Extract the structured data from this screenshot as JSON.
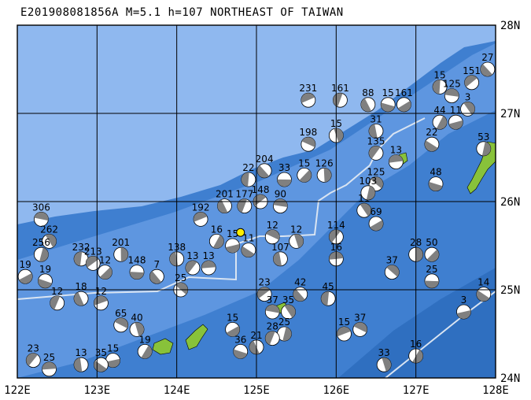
{
  "title": "E201908081856A M=5.1 h=107 NORTHEAST OF TAIWAN",
  "map": {
    "lon_range": [
      122,
      128
    ],
    "lat_range": [
      24,
      28
    ],
    "lon_ticks": [
      "122E",
      "123E",
      "124E",
      "125E",
      "126E",
      "127E",
      "128E"
    ],
    "lat_ticks": [
      "28N",
      "27N",
      "26N",
      "25N",
      "24N"
    ],
    "colors": {
      "deep_sea": "#3f7fd0",
      "mid_sea": "#5e96e0",
      "shelf_sea": "#8fb8ef",
      "land": "#88c23a",
      "grid": "#000000",
      "trench_line": "#d9e4f2",
      "epicenter": "#ffee00"
    },
    "epicenter": {
      "lon": 124.8,
      "lat": 25.65
    }
  },
  "mechanisms": [
    {
      "lon": 128.1,
      "lat": 27.85,
      "depth": "27"
    },
    {
      "lon": 127.9,
      "lat": 27.5,
      "depth": "27"
    },
    {
      "lon": 127.3,
      "lat": 27.3,
      "depth": "15"
    },
    {
      "lon": 127.7,
      "lat": 27.35,
      "depth": "151"
    },
    {
      "lon": 127.45,
      "lat": 27.2,
      "depth": "125"
    },
    {
      "lon": 127.65,
      "lat": 27.05,
      "depth": "3"
    },
    {
      "lon": 127.85,
      "lat": 26.6,
      "depth": "53"
    },
    {
      "lon": 126.85,
      "lat": 27.1,
      "depth": "161"
    },
    {
      "lon": 126.65,
      "lat": 27.1,
      "depth": "15"
    },
    {
      "lon": 126.4,
      "lat": 27.1,
      "depth": "88"
    },
    {
      "lon": 126.05,
      "lat": 27.15,
      "depth": "161"
    },
    {
      "lon": 125.65,
      "lat": 27.15,
      "depth": "231"
    },
    {
      "lon": 125.65,
      "lat": 26.65,
      "depth": "198"
    },
    {
      "lon": 126.0,
      "lat": 26.75,
      "depth": "15"
    },
    {
      "lon": 127.3,
      "lat": 26.9,
      "depth": "44"
    },
    {
      "lon": 127.5,
      "lat": 26.9,
      "depth": "11"
    },
    {
      "lon": 127.2,
      "lat": 26.65,
      "depth": "22"
    },
    {
      "lon": 126.5,
      "lat": 26.8,
      "depth": "31"
    },
    {
      "lon": 126.5,
      "lat": 26.55,
      "depth": "135"
    },
    {
      "lon": 126.75,
      "lat": 26.45,
      "depth": "13"
    },
    {
      "lon": 126.5,
      "lat": 26.2,
      "depth": "125"
    },
    {
      "lon": 125.85,
      "lat": 26.3,
      "depth": "126"
    },
    {
      "lon": 125.6,
      "lat": 26.3,
      "depth": "15"
    },
    {
      "lon": 125.35,
      "lat": 26.25,
      "depth": "33"
    },
    {
      "lon": 125.1,
      "lat": 26.35,
      "depth": "204"
    },
    {
      "lon": 124.9,
      "lat": 26.25,
      "depth": "22"
    },
    {
      "lon": 125.05,
      "lat": 26.0,
      "depth": "148"
    },
    {
      "lon": 125.3,
      "lat": 25.95,
      "depth": "90"
    },
    {
      "lon": 126.35,
      "lat": 25.9,
      "depth": "11"
    },
    {
      "lon": 126.4,
      "lat": 26.1,
      "depth": "103"
    },
    {
      "lon": 126.5,
      "lat": 25.75,
      "depth": "69"
    },
    {
      "lon": 127.25,
      "lat": 26.2,
      "depth": "48"
    },
    {
      "lon": 124.6,
      "lat": 25.95,
      "depth": "201"
    },
    {
      "lon": 124.85,
      "lat": 25.95,
      "depth": "177"
    },
    {
      "lon": 124.3,
      "lat": 25.8,
      "depth": "192"
    },
    {
      "lon": 125.2,
      "lat": 25.6,
      "depth": "12"
    },
    {
      "lon": 125.5,
      "lat": 25.55,
      "depth": "12"
    },
    {
      "lon": 124.5,
      "lat": 25.55,
      "depth": "16"
    },
    {
      "lon": 124.7,
      "lat": 25.5,
      "depth": "15"
    },
    {
      "lon": 124.9,
      "lat": 25.45,
      "depth": "11"
    },
    {
      "lon": 125.3,
      "lat": 25.35,
      "depth": "107"
    },
    {
      "lon": 126.0,
      "lat": 25.6,
      "depth": "114"
    },
    {
      "lon": 126.0,
      "lat": 25.35,
      "depth": "16"
    },
    {
      "lon": 126.7,
      "lat": 25.2,
      "depth": "37"
    },
    {
      "lon": 127.0,
      "lat": 25.4,
      "depth": "28"
    },
    {
      "lon": 127.2,
      "lat": 25.4,
      "depth": "50"
    },
    {
      "lon": 127.2,
      "lat": 25.1,
      "depth": "25"
    },
    {
      "lon": 125.55,
      "lat": 24.95,
      "depth": "42"
    },
    {
      "lon": 125.9,
      "lat": 24.9,
      "depth": "45"
    },
    {
      "lon": 125.1,
      "lat": 24.95,
      "depth": "23"
    },
    {
      "lon": 125.2,
      "lat": 24.75,
      "depth": "37"
    },
    {
      "lon": 125.4,
      "lat": 24.75,
      "depth": "35"
    },
    {
      "lon": 125.35,
      "lat": 24.5,
      "depth": "25"
    },
    {
      "lon": 124.7,
      "lat": 24.55,
      "depth": "15"
    },
    {
      "lon": 124.8,
      "lat": 24.3,
      "depth": "36"
    },
    {
      "lon": 125.0,
      "lat": 24.35,
      "depth": "21"
    },
    {
      "lon": 125.2,
      "lat": 24.45,
      "depth": "28"
    },
    {
      "lon": 126.1,
      "lat": 24.5,
      "depth": "15"
    },
    {
      "lon": 126.3,
      "lat": 24.55,
      "depth": "37"
    },
    {
      "lon": 126.6,
      "lat": 24.15,
      "depth": "33"
    },
    {
      "lon": 127.0,
      "lat": 24.25,
      "depth": "16"
    },
    {
      "lon": 127.6,
      "lat": 24.75,
      "depth": "3"
    },
    {
      "lon": 127.85,
      "lat": 24.95,
      "depth": "14"
    },
    {
      "lon": 124.0,
      "lat": 25.35,
      "depth": "138"
    },
    {
      "lon": 124.2,
      "lat": 25.25,
      "depth": "13"
    },
    {
      "lon": 124.4,
      "lat": 25.25,
      "depth": "13"
    },
    {
      "lon": 124.05,
      "lat": 25.0,
      "depth": "25"
    },
    {
      "lon": 123.3,
      "lat": 25.4,
      "depth": "201"
    },
    {
      "lon": 123.1,
      "lat": 25.2,
      "depth": "12"
    },
    {
      "lon": 123.5,
      "lat": 25.2,
      "depth": "148"
    },
    {
      "lon": 123.75,
      "lat": 25.15,
      "depth": "7"
    },
    {
      "lon": 122.8,
      "lat": 25.35,
      "depth": "232"
    },
    {
      "lon": 122.95,
      "lat": 25.3,
      "depth": "213"
    },
    {
      "lon": 122.3,
      "lat": 25.8,
      "depth": "306"
    },
    {
      "lon": 122.4,
      "lat": 25.55,
      "depth": "262"
    },
    {
      "lon": 122.3,
      "lat": 25.4,
      "depth": "256"
    },
    {
      "lon": 122.1,
      "lat": 25.15,
      "depth": "19"
    },
    {
      "lon": 122.35,
      "lat": 25.1,
      "depth": "19"
    },
    {
      "lon": 122.8,
      "lat": 24.9,
      "depth": "18"
    },
    {
      "lon": 122.5,
      "lat": 24.85,
      "depth": "12"
    },
    {
      "lon": 123.05,
      "lat": 24.85,
      "depth": "12"
    },
    {
      "lon": 123.3,
      "lat": 24.6,
      "depth": "65"
    },
    {
      "lon": 123.5,
      "lat": 24.55,
      "depth": "40"
    },
    {
      "lon": 123.6,
      "lat": 24.3,
      "depth": "19"
    },
    {
      "lon": 123.2,
      "lat": 24.2,
      "depth": "15"
    },
    {
      "lon": 123.05,
      "lat": 24.15,
      "depth": "35"
    },
    {
      "lon": 122.8,
      "lat": 24.15,
      "depth": "13"
    },
    {
      "lon": 122.2,
      "lat": 24.2,
      "depth": "23"
    },
    {
      "lon": 122.4,
      "lat": 24.1,
      "depth": "25"
    }
  ]
}
